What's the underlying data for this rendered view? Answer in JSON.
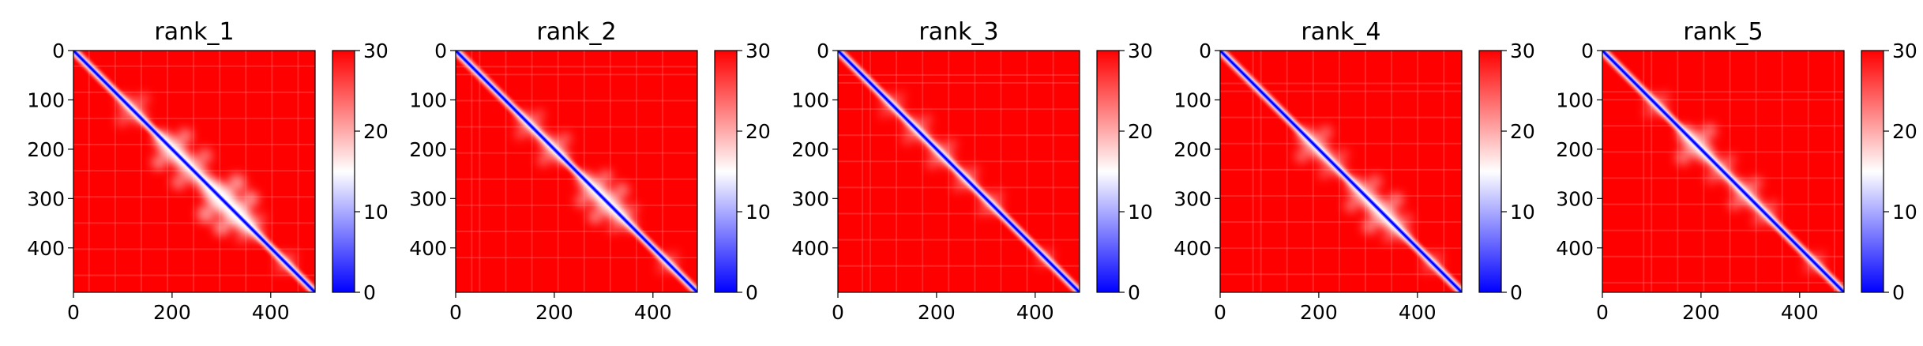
{
  "chart_data": [
    {
      "type": "heatmap",
      "title": "rank_1",
      "xlim": [
        0,
        490
      ],
      "ylim": [
        490,
        0
      ],
      "xticks": [
        0,
        200,
        400
      ],
      "yticks": [
        0,
        100,
        200,
        300,
        400
      ],
      "colorbar": {
        "range": [
          0,
          30
        ],
        "ticks": [
          0,
          10,
          20,
          30
        ],
        "colormap": "bwr",
        "colors": {
          "low": "#0000ff",
          "mid": "#ffffff",
          "high": "#ff0000"
        }
      },
      "grid": false
    },
    {
      "type": "heatmap",
      "title": "rank_2",
      "xlim": [
        0,
        490
      ],
      "ylim": [
        490,
        0
      ],
      "xticks": [
        0,
        200,
        400
      ],
      "yticks": [
        0,
        100,
        200,
        300,
        400
      ],
      "colorbar": {
        "range": [
          0,
          30
        ],
        "ticks": [
          0,
          10,
          20,
          30
        ],
        "colormap": "bwr",
        "colors": {
          "low": "#0000ff",
          "mid": "#ffffff",
          "high": "#ff0000"
        }
      },
      "grid": false
    },
    {
      "type": "heatmap",
      "title": "rank_3",
      "xlim": [
        0,
        490
      ],
      "ylim": [
        490,
        0
      ],
      "xticks": [
        0,
        200,
        400
      ],
      "yticks": [
        0,
        100,
        200,
        300,
        400
      ],
      "colorbar": {
        "range": [
          0,
          30
        ],
        "ticks": [
          0,
          10,
          20,
          30
        ],
        "colormap": "bwr",
        "colors": {
          "low": "#0000ff",
          "mid": "#ffffff",
          "high": "#ff0000"
        }
      },
      "grid": false
    },
    {
      "type": "heatmap",
      "title": "rank_4",
      "xlim": [
        0,
        490
      ],
      "ylim": [
        490,
        0
      ],
      "xticks": [
        0,
        200,
        400
      ],
      "yticks": [
        0,
        100,
        200,
        300,
        400
      ],
      "colorbar": {
        "range": [
          0,
          30
        ],
        "ticks": [
          0,
          10,
          20,
          30
        ],
        "colormap": "bwr",
        "colors": {
          "low": "#0000ff",
          "mid": "#ffffff",
          "high": "#ff0000"
        }
      },
      "grid": false
    },
    {
      "type": "heatmap",
      "title": "rank_5",
      "xlim": [
        0,
        490
      ],
      "ylim": [
        490,
        0
      ],
      "xticks": [
        0,
        200,
        400
      ],
      "yticks": [
        0,
        100,
        200,
        300,
        400
      ],
      "colorbar": {
        "range": [
          0,
          30
        ],
        "ticks": [
          0,
          10,
          20,
          30
        ],
        "colormap": "bwr",
        "colors": {
          "low": "#0000ff",
          "mid": "#ffffff",
          "high": "#ff0000"
        }
      },
      "grid": false
    }
  ]
}
